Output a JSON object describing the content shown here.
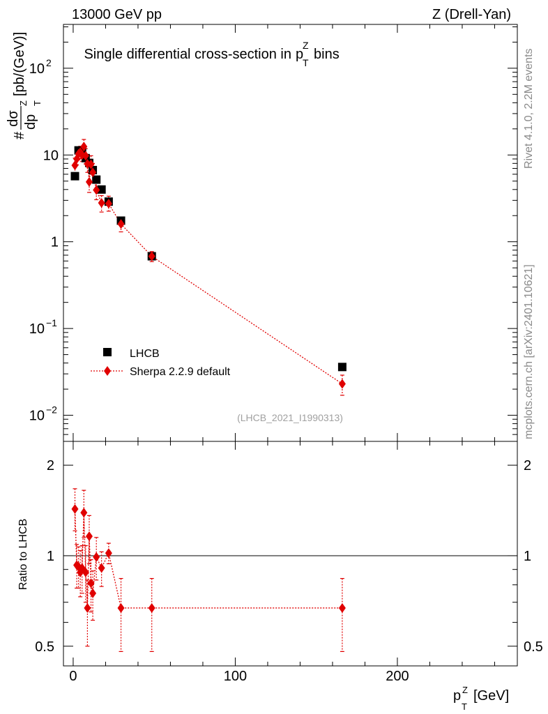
{
  "header": {
    "left": "13000 GeV pp",
    "right": "Z (Drell-Yan)"
  },
  "side_text": {
    "rivet": "Rivet 4.1.0,  2.2M events",
    "mcplots": "mcplots.cern.ch [arXiv:2401.10621]"
  },
  "chart_data": [
    {
      "type": "scatter",
      "title": "Single differential cross-section in",
      "title_tail": "bins",
      "title_var": "p",
      "title_var_sup": "Z",
      "title_var_sub": "T",
      "analysis_id": "(LHCB_2021_I1990313)",
      "ylabel": {
        "prefix": "#",
        "numerator": "dσ",
        "denominator": "dp",
        "denominator_sup": "Z",
        "denominator_sub": "T",
        "unit": "[pb/(GeV)]"
      },
      "yscale": "log",
      "ylim": [
        0.005,
        320
      ],
      "xlim": [
        -6,
        274
      ],
      "y_ticks": [
        {
          "value": 100,
          "base": "10",
          "exp": "2"
        },
        {
          "value": 10,
          "base": "10",
          "exp": ""
        },
        {
          "value": 1,
          "base": "1",
          "exp": ""
        },
        {
          "value": 0.1,
          "base": "10",
          "exp": "−1"
        },
        {
          "value": 0.01,
          "base": "10",
          "exp": "−2"
        }
      ],
      "legend": [
        {
          "label": "LHCB",
          "marker": "square",
          "color": "#000000"
        },
        {
          "label": "Sherpa 2.2.9 default",
          "marker": "diamond",
          "color": "#e00000"
        }
      ],
      "series": [
        {
          "name": "LHCB",
          "x": [
            1.1,
            3.3,
            5.5,
            7.7,
            9.9,
            12.1,
            14.3,
            17.5,
            21.9,
            29.5,
            48.5,
            166.0
          ],
          "y": [
            5.7,
            11.3,
            11.0,
            9.2,
            8.1,
            6.7,
            5.2,
            4.0,
            2.9,
            1.75,
            0.68,
            0.036
          ]
        },
        {
          "name": "Sherpa 2.2.9 default",
          "x": [
            1.1,
            2.2,
            3.3,
            4.4,
            5.5,
            6.6,
            7.7,
            8.8,
            9.9,
            11.0,
            12.1,
            14.3,
            17.5,
            21.9,
            29.5,
            48.5,
            166.0
          ],
          "y": [
            7.6,
            9.0,
            10.3,
            10.8,
            10.0,
            12.5,
            9.8,
            7.9,
            4.9,
            7.8,
            6.3,
            3.95,
            2.8,
            2.75,
            1.6,
            0.68,
            0.023
          ],
          "yerr_up": [
            1.6,
            1.5,
            1.6,
            1.8,
            1.7,
            2.6,
            2.0,
            1.7,
            1.4,
            2.0,
            1.7,
            1.0,
            0.6,
            0.6,
            0.3,
            0.09,
            0.006
          ],
          "yerr_down": [
            1.4,
            1.3,
            1.5,
            1.7,
            1.6,
            2.3,
            1.9,
            1.6,
            1.2,
            1.8,
            1.5,
            0.9,
            0.6,
            0.5,
            0.3,
            0.09,
            0.006
          ]
        }
      ]
    },
    {
      "type": "scatter",
      "ylabel": "Ratio to LHCB",
      "xlabel": "p",
      "xlabel_sup": "Z",
      "xlabel_sub": "T",
      "xlabel_unit": "[GeV]",
      "yscale": "log",
      "ylim": [
        0.43,
        2.4
      ],
      "xlim": [
        -6,
        274
      ],
      "reference": 1,
      "x_ticks": [
        {
          "value": 0,
          "label": "0"
        },
        {
          "value": 100,
          "label": "100"
        },
        {
          "value": 200,
          "label": "200"
        }
      ],
      "y_ticks": [
        {
          "value": 2,
          "label": "2"
        },
        {
          "value": 1,
          "label": "1"
        },
        {
          "value": 0.5,
          "label": "0.5"
        }
      ],
      "series": [
        {
          "name": "Sherpa 2.2.9 default / LHCB",
          "x": [
            1.1,
            2.2,
            3.3,
            4.4,
            5.5,
            6.6,
            7.7,
            8.8,
            9.9,
            11.0,
            12.1,
            14.3,
            17.5,
            21.9,
            29.5,
            48.5,
            166.0
          ],
          "y": [
            1.43,
            0.93,
            0.92,
            0.88,
            0.91,
            1.39,
            0.88,
            0.67,
            1.16,
            0.81,
            0.75,
            0.99,
            0.91,
            1.02,
            0.67,
            0.67,
            0.67
          ],
          "yerr_up": [
            0.24,
            0.16,
            0.15,
            0.16,
            0.17,
            0.26,
            0.2,
            0.16,
            0.2,
            0.16,
            0.14,
            0.16,
            0.12,
            0.08,
            0.17,
            0.17,
            0.17
          ],
          "yerr_down": [
            0.22,
            0.15,
            0.14,
            0.15,
            0.16,
            0.24,
            0.18,
            0.17,
            0.22,
            0.16,
            0.14,
            0.16,
            0.12,
            0.08,
            0.19,
            0.19,
            0.19
          ]
        }
      ]
    }
  ]
}
